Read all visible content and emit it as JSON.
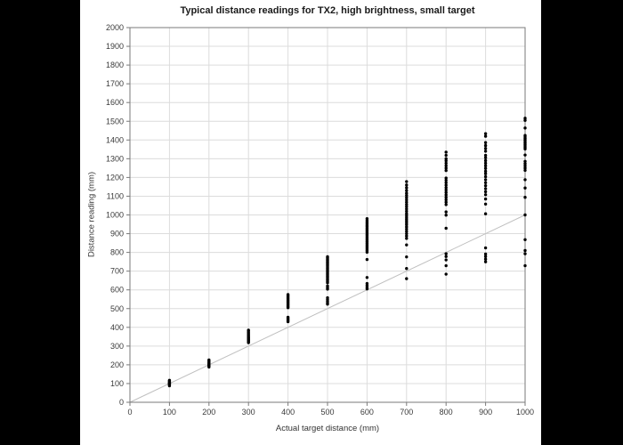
{
  "figure": {
    "title": "Typical distance readings for TX2, high brightness, small target",
    "xlabel": "Actual target distance (mm)",
    "ylabel": "Distance reading (mm)"
  },
  "chart_data": {
    "type": "scatter",
    "title": "Typical distance readings for TX2, high brightness, small target",
    "xlabel": "Actual target distance (mm)",
    "ylabel": "Distance reading (mm)",
    "xlim": [
      0,
      1000
    ],
    "ylim": [
      0,
      2000
    ],
    "x_ticks": [
      0,
      100,
      200,
      300,
      400,
      500,
      600,
      700,
      800,
      900,
      1000
    ],
    "y_ticks": [
      0,
      100,
      200,
      300,
      400,
      500,
      600,
      700,
      800,
      900,
      1000,
      1100,
      1200,
      1300,
      1400,
      1500,
      1600,
      1700,
      1800,
      1900,
      2000
    ],
    "grid": true,
    "legend": "none",
    "reference_line": {
      "from": [
        0,
        0
      ],
      "to": [
        1000,
        1000
      ]
    },
    "colors": {
      "points": "#000000",
      "reference_line": "#c0c0c0",
      "grid": "#dcdcdc",
      "axis": "#7a7a7a",
      "tick_text": "#3a3a3a",
      "page_background": "#000000",
      "figure_background": "#ffffff"
    },
    "series": [
      {
        "name": "readings",
        "points": [
          [
            100,
            88
          ],
          [
            100,
            93
          ],
          [
            100,
            96
          ],
          [
            100,
            99
          ],
          [
            100,
            101
          ],
          [
            100,
            103
          ],
          [
            100,
            106
          ],
          [
            100,
            110
          ],
          [
            100,
            114
          ],
          [
            100,
            117
          ],
          [
            200,
            188
          ],
          [
            200,
            193
          ],
          [
            200,
            197
          ],
          [
            200,
            200
          ],
          [
            200,
            203
          ],
          [
            200,
            206
          ],
          [
            200,
            210
          ],
          [
            200,
            215
          ],
          [
            200,
            221
          ],
          [
            200,
            226
          ],
          [
            300,
            318
          ],
          [
            300,
            323
          ],
          [
            300,
            328
          ],
          [
            300,
            332
          ],
          [
            300,
            336
          ],
          [
            300,
            340
          ],
          [
            300,
            344
          ],
          [
            300,
            348
          ],
          [
            300,
            354
          ],
          [
            300,
            360
          ],
          [
            300,
            367
          ],
          [
            300,
            374
          ],
          [
            300,
            381
          ],
          [
            300,
            385
          ],
          [
            400,
            430
          ],
          [
            400,
            436
          ],
          [
            400,
            442
          ],
          [
            400,
            448
          ],
          [
            400,
            454
          ],
          [
            400,
            505
          ],
          [
            400,
            510
          ],
          [
            400,
            516
          ],
          [
            400,
            522
          ],
          [
            400,
            528
          ],
          [
            400,
            534
          ],
          [
            400,
            540
          ],
          [
            400,
            546
          ],
          [
            400,
            552
          ],
          [
            400,
            558
          ],
          [
            400,
            564
          ],
          [
            400,
            570
          ],
          [
            400,
            575
          ],
          [
            500,
            524
          ],
          [
            500,
            531
          ],
          [
            500,
            540
          ],
          [
            500,
            549
          ],
          [
            500,
            558
          ],
          [
            500,
            604
          ],
          [
            500,
            612
          ],
          [
            500,
            621
          ],
          [
            500,
            638
          ],
          [
            500,
            645
          ],
          [
            500,
            652
          ],
          [
            500,
            659
          ],
          [
            500,
            666
          ],
          [
            500,
            673
          ],
          [
            500,
            680
          ],
          [
            500,
            687
          ],
          [
            500,
            694
          ],
          [
            500,
            701
          ],
          [
            500,
            708
          ],
          [
            500,
            715
          ],
          [
            500,
            722
          ],
          [
            500,
            729
          ],
          [
            500,
            736
          ],
          [
            500,
            743
          ],
          [
            500,
            750
          ],
          [
            500,
            757
          ],
          [
            500,
            764
          ],
          [
            500,
            771
          ],
          [
            500,
            777
          ],
          [
            600,
            605
          ],
          [
            600,
            614
          ],
          [
            600,
            624
          ],
          [
            600,
            634
          ],
          [
            600,
            666
          ],
          [
            600,
            762
          ],
          [
            600,
            801
          ],
          [
            600,
            809
          ],
          [
            600,
            817
          ],
          [
            600,
            825
          ],
          [
            600,
            833
          ],
          [
            600,
            841
          ],
          [
            600,
            849
          ],
          [
            600,
            857
          ],
          [
            600,
            865
          ],
          [
            600,
            873
          ],
          [
            600,
            881
          ],
          [
            600,
            889
          ],
          [
            600,
            897
          ],
          [
            600,
            905
          ],
          [
            600,
            913
          ],
          [
            600,
            921
          ],
          [
            600,
            929
          ],
          [
            600,
            937
          ],
          [
            600,
            945
          ],
          [
            600,
            953
          ],
          [
            600,
            961
          ],
          [
            600,
            970
          ],
          [
            600,
            980
          ],
          [
            700,
            660
          ],
          [
            700,
            714
          ],
          [
            700,
            776
          ],
          [
            700,
            840
          ],
          [
            700,
            875
          ],
          [
            700,
            888
          ],
          [
            700,
            900
          ],
          [
            700,
            912
          ],
          [
            700,
            924
          ],
          [
            700,
            936
          ],
          [
            700,
            948
          ],
          [
            700,
            958
          ],
          [
            700,
            968
          ],
          [
            700,
            978
          ],
          [
            700,
            988
          ],
          [
            700,
            998
          ],
          [
            700,
            1008
          ],
          [
            700,
            1020
          ],
          [
            700,
            1032
          ],
          [
            700,
            1044
          ],
          [
            700,
            1056
          ],
          [
            700,
            1068
          ],
          [
            700,
            1080
          ],
          [
            700,
            1092
          ],
          [
            700,
            1104
          ],
          [
            700,
            1116
          ],
          [
            700,
            1130
          ],
          [
            700,
            1145
          ],
          [
            700,
            1160
          ],
          [
            700,
            1178
          ],
          [
            800,
            684
          ],
          [
            800,
            729
          ],
          [
            800,
            760
          ],
          [
            800,
            778
          ],
          [
            800,
            793
          ],
          [
            800,
            929
          ],
          [
            800,
            999
          ],
          [
            800,
            1016
          ],
          [
            800,
            1055
          ],
          [
            800,
            1068
          ],
          [
            800,
            1081
          ],
          [
            800,
            1094
          ],
          [
            800,
            1107
          ],
          [
            800,
            1120
          ],
          [
            800,
            1133
          ],
          [
            800,
            1146
          ],
          [
            800,
            1159
          ],
          [
            800,
            1172
          ],
          [
            800,
            1185
          ],
          [
            800,
            1197
          ],
          [
            800,
            1237
          ],
          [
            800,
            1250
          ],
          [
            800,
            1263
          ],
          [
            800,
            1276
          ],
          [
            800,
            1289
          ],
          [
            800,
            1300
          ],
          [
            800,
            1318
          ],
          [
            800,
            1335
          ],
          [
            900,
            750
          ],
          [
            900,
            764
          ],
          [
            900,
            778
          ],
          [
            900,
            791
          ],
          [
            900,
            824
          ],
          [
            900,
            1006
          ],
          [
            900,
            1058
          ],
          [
            900,
            1085
          ],
          [
            900,
            1108
          ],
          [
            900,
            1124
          ],
          [
            900,
            1140
          ],
          [
            900,
            1156
          ],
          [
            900,
            1172
          ],
          [
            900,
            1188
          ],
          [
            900,
            1204
          ],
          [
            900,
            1220
          ],
          [
            900,
            1233
          ],
          [
            900,
            1248
          ],
          [
            900,
            1262
          ],
          [
            900,
            1276
          ],
          [
            900,
            1290
          ],
          [
            900,
            1305
          ],
          [
            900,
            1318
          ],
          [
            900,
            1340
          ],
          [
            900,
            1355
          ],
          [
            900,
            1370
          ],
          [
            900,
            1386
          ],
          [
            900,
            1420
          ],
          [
            900,
            1434
          ],
          [
            1000,
            729
          ],
          [
            1000,
            793
          ],
          [
            1000,
            810
          ],
          [
            1000,
            868
          ],
          [
            1000,
            1000
          ],
          [
            1000,
            1094
          ],
          [
            1000,
            1144
          ],
          [
            1000,
            1188
          ],
          [
            1000,
            1238
          ],
          [
            1000,
            1250
          ],
          [
            1000,
            1262
          ],
          [
            1000,
            1274
          ],
          [
            1000,
            1286
          ],
          [
            1000,
            1320
          ],
          [
            1000,
            1352
          ],
          [
            1000,
            1360
          ],
          [
            1000,
            1368
          ],
          [
            1000,
            1376
          ],
          [
            1000,
            1384
          ],
          [
            1000,
            1392
          ],
          [
            1000,
            1400
          ],
          [
            1000,
            1408
          ],
          [
            1000,
            1416
          ],
          [
            1000,
            1424
          ],
          [
            1000,
            1464
          ],
          [
            1000,
            1505
          ],
          [
            1000,
            1516
          ]
        ]
      }
    ]
  }
}
